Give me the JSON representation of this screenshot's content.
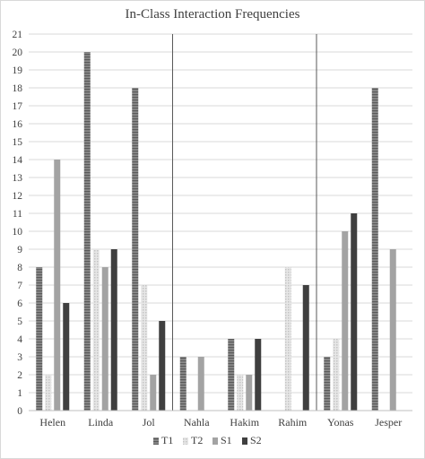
{
  "chart_data": {
    "type": "bar",
    "title": "In-Class Interaction Frequencies",
    "xlabel": "",
    "ylabel": "",
    "ylim": [
      0,
      21
    ],
    "yticks": [
      0,
      1,
      2,
      3,
      4,
      5,
      6,
      7,
      8,
      9,
      10,
      11,
      12,
      13,
      14,
      15,
      16,
      17,
      18,
      19,
      20,
      21
    ],
    "grid": true,
    "legend_position": "bottom",
    "categories": [
      "Helen",
      "Linda",
      "Jol",
      "Nahla",
      "Hakim",
      "Rahim",
      "Yonas",
      "Jesper"
    ],
    "group_separators_after": [
      "Jol",
      "Rahim"
    ],
    "series": [
      {
        "name": "T1",
        "values": [
          8,
          20,
          18,
          3,
          4,
          0,
          3,
          18
        ],
        "color": "#7a7a7a",
        "pattern": "horizontal-stripes"
      },
      {
        "name": "T2",
        "values": [
          2,
          9,
          7,
          0,
          2,
          8,
          4,
          0
        ],
        "color": "#d4d4d4",
        "pattern": "dotted"
      },
      {
        "name": "S1",
        "values": [
          14,
          8,
          2,
          3,
          2,
          0,
          10,
          9
        ],
        "color": "#a3a3a3",
        "pattern": "solid"
      },
      {
        "name": "S2",
        "values": [
          6,
          9,
          5,
          0,
          4,
          7,
          11,
          0
        ],
        "color": "#3f3f3f",
        "pattern": "solid"
      }
    ]
  }
}
